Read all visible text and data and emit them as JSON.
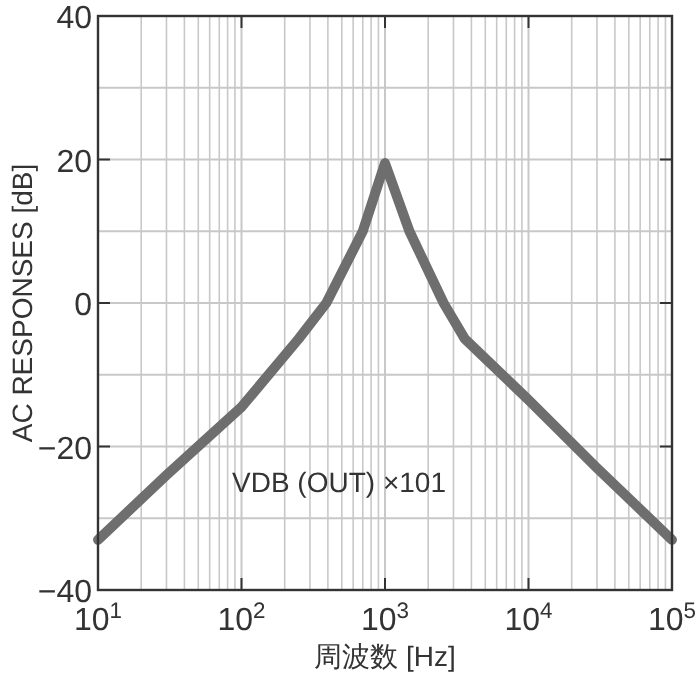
{
  "chart_data": {
    "type": "line",
    "xlabel": "周波数 [Hz]",
    "ylabel": "AC RESPONSES [dB]",
    "log": "x",
    "x": [
      10,
      30,
      100,
      250,
      390,
      700,
      1000,
      1480,
      2560,
      3600,
      10000,
      30000,
      100000
    ],
    "series": [
      {
        "color": "#6e6e6e",
        "values": [
          -33,
          -24,
          -14.5,
          -5,
          0,
          10,
          19.5,
          10,
          0,
          -5,
          -13.5,
          -23,
          -33
        ]
      }
    ],
    "xlim": [
      10,
      100000
    ],
    "ylim": [
      -40,
      40
    ],
    "xticks": [
      {
        "value": 10,
        "label": "10$^{1}$"
      },
      {
        "value": 100,
        "label": "10$^{2}$"
      },
      {
        "value": 1000,
        "label": "10$^{3}$"
      },
      {
        "value": 10000,
        "label": "10$^{4}$"
      },
      {
        "value": 100000,
        "label": "10$^{5}$"
      }
    ],
    "yticks": [
      -40,
      -20,
      0,
      20,
      40
    ],
    "grid": true,
    "annotations": [
      "VDB (OUT) ×101"
    ]
  }
}
